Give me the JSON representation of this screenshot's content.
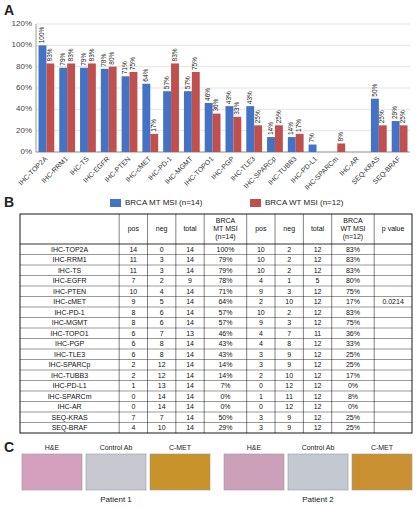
{
  "chart_data": [
    {
      "type": "bar",
      "title": "A",
      "categories": [
        "IHC-TOP2A",
        "IHC-RRM1",
        "IHC-TS",
        "IHC-EGFR",
        "IHC-PTEN",
        "IHC-cMET",
        "IHC-PD-1",
        "IHC-MGMT",
        "IHC-TOPO1",
        "IHC-PGP",
        "IHC-TLE3",
        "IHC-SPARCp",
        "IHC-TUBB3",
        "IHC-PD-L1",
        "IHC-SPARCm",
        "IHC-AR",
        "SEQ-KRAS",
        "SEQ-BRAF"
      ],
      "series": [
        {
          "name": "BRCA MT MSI (n=14)",
          "color": "#4472C4",
          "values": [
            100,
            79,
            79,
            78,
            71,
            64,
            57,
            57,
            46,
            43,
            43,
            14,
            14,
            7,
            0,
            0,
            50,
            29
          ],
          "value_labels": [
            "100%",
            "79%",
            "79%",
            "78%",
            "71%",
            "64%",
            "57%",
            "57%",
            "46%",
            "43%",
            "43%",
            "14%",
            "14%",
            "7%",
            null,
            null,
            "50%",
            "29%"
          ]
        },
        {
          "name": "BRCA WT MSI (n=12)",
          "color": "#C0504D",
          "values": [
            83,
            83,
            83,
            80,
            75,
            17,
            83,
            75,
            36,
            33,
            25,
            25,
            17,
            0,
            8,
            0,
            25,
            25
          ],
          "value_labels": [
            "83%",
            "83%",
            "83%",
            "80%",
            "75%",
            "17%",
            "83%",
            "75%",
            "36%",
            "33%",
            "25%",
            "25%",
            "17%",
            null,
            "8%",
            null,
            "25%",
            "25%"
          ]
        }
      ],
      "ylim": [
        0,
        120
      ],
      "yticks": [
        {
          "value": 0,
          "label": "0%"
        },
        {
          "value": 20,
          "label": "20%"
        },
        {
          "value": 40,
          "label": "40%"
        },
        {
          "value": 60,
          "label": "60%"
        },
        {
          "value": 80,
          "label": "80%"
        },
        {
          "value": 100,
          "label": "100%"
        },
        {
          "value": 120,
          "label": "120%"
        }
      ],
      "grid": true,
      "data_labels": true,
      "legend": "bottom"
    },
    {
      "type": "table",
      "title": "B",
      "columns": [
        null,
        "pos",
        "neg",
        "total",
        "BRCA\nMT MSI\n(n=14)",
        "pos",
        "neg",
        "total",
        "BRCA\nWT MSI\n(n=12)",
        "p value"
      ],
      "rows": [
        [
          "IHC-TOP2A",
          "14",
          "0",
          "14",
          "100%",
          "10",
          "2",
          "12",
          "83%",
          null
        ],
        [
          "IHC-RRM1",
          "11",
          "3",
          "14",
          "79%",
          "10",
          "2",
          "12",
          "83%",
          null
        ],
        [
          "IHC-TS",
          "11",
          "3",
          "14",
          "79%",
          "10",
          "2",
          "12",
          "83%",
          null
        ],
        [
          "IHC-EGFR",
          "7",
          "2",
          "9",
          "78%",
          "4",
          "1",
          "5",
          "80%",
          null
        ],
        [
          "IHC-PTEN",
          "10",
          "4",
          "14",
          "71%",
          "9",
          "3",
          "12",
          "75%",
          null
        ],
        [
          "IHC-cMET",
          "9",
          "5",
          "14",
          "64%",
          "2",
          "10",
          "12",
          "17%",
          "0.0214"
        ],
        [
          "IHC-PD-1",
          "8",
          "6",
          "14",
          "57%",
          "10",
          "2",
          "12",
          "83%",
          null
        ],
        [
          "IHC-MGMT",
          "8",
          "6",
          "14",
          "57%",
          "9",
          "3",
          "12",
          "75%",
          null
        ],
        [
          "IHC-TOPO1",
          "6",
          "7",
          "13",
          "46%",
          "4",
          "7",
          "11",
          "36%",
          null
        ],
        [
          "IHC-PGP",
          "6",
          "8",
          "14",
          "43%",
          "4",
          "8",
          "12",
          "33%",
          null
        ],
        [
          "IHC-TLE3",
          "6",
          "8",
          "14",
          "43%",
          "3",
          "9",
          "12",
          "25%",
          null
        ],
        [
          "IHC-SPARCp",
          "2",
          "12",
          "14",
          "14%",
          "3",
          "9",
          "12",
          "25%",
          null
        ],
        [
          "IHC-TUBB3",
          "2",
          "12",
          "14",
          "14%",
          "2",
          "10",
          "12",
          "17%",
          null
        ],
        [
          "IHC-PD-L1",
          "1",
          "13",
          "14",
          "7%",
          "0",
          "12",
          "12",
          "0%",
          null
        ],
        [
          "IHC-SPARCm",
          "0",
          "14",
          "14",
          "0%",
          "1",
          "11",
          "12",
          "8%",
          null
        ],
        [
          "IHC-AR",
          "0",
          "14",
          "14",
          "0%",
          "0",
          "12",
          "12",
          "0%",
          null
        ],
        [
          "SEQ-KRAS",
          "7",
          "7",
          "14",
          "50%",
          "3",
          "9",
          "12",
          "25%",
          null
        ],
        [
          "SEQ-BRAF",
          "4",
          "10",
          "14",
          "29%",
          "3",
          "9",
          "12",
          "25%",
          null
        ]
      ]
    },
    {
      "type": "tiles",
      "title": "C",
      "groups": [
        {
          "name": "Patient 1",
          "tiles": [
            {
              "label": "H&E",
              "color": "#D4A0BE"
            },
            {
              "label": "Control Ab",
              "color": "#C8C8D0"
            },
            {
              "label": "C-MET",
              "color": "#C8922A"
            }
          ]
        },
        {
          "name": "Patient 2",
          "tiles": [
            {
              "label": "H&E",
              "color": "#CCA0B8"
            },
            {
              "label": "Control Ab",
              "color": "#C4C8D0"
            },
            {
              "label": "C-MET",
              "color": "#C89030"
            }
          ]
        }
      ]
    }
  ]
}
